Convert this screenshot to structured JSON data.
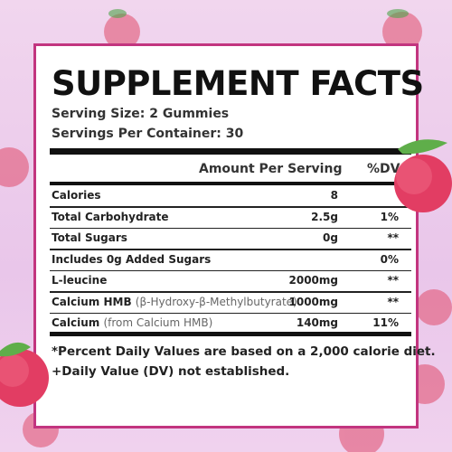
{
  "label": {
    "title": "SUPPLEMENT FACTS",
    "serving_size": "Serving Size: 2 Gummies",
    "servings_per_container": "Servings Per Container: 30",
    "header": {
      "amount": "Amount Per Serving",
      "dv": "%DV"
    },
    "rows": [
      {
        "name": "Calories",
        "amount": "8"
      },
      {
        "name": "Total Carbohydrate",
        "amount": "2.5g",
        "dv": "1%"
      },
      {
        "name": "Total Sugars",
        "amount": "0g",
        "dv": "**"
      },
      {
        "name": "Includes 0g Added Sugars",
        "dv": "0%"
      },
      {
        "name": "L-leucine",
        "amount": "2000mg",
        "dv": "**"
      },
      {
        "name": "Calcium HMB",
        "note": "(β-Hydroxy-β-Methylbutyrate)",
        "amount": "1000mg",
        "dv": "**"
      },
      {
        "name": "Calcium",
        "note": "(from Calcium HMB)",
        "amount": "140mg",
        "dv": "11%"
      }
    ],
    "footnotes": [
      "*Percent Daily Values are based on a 2,000 calorie diet.",
      "+Daily Value (DV) not established."
    ]
  }
}
